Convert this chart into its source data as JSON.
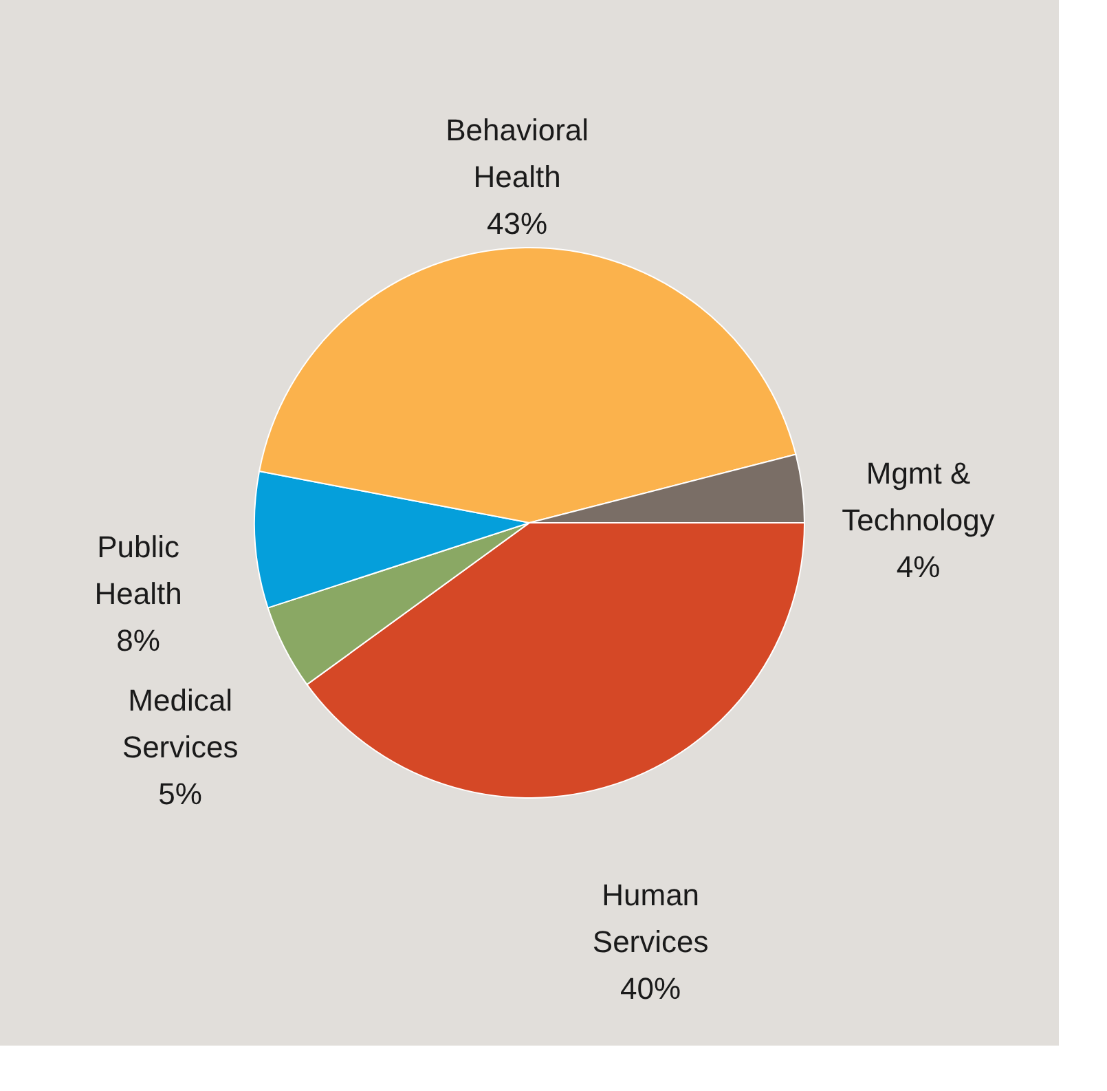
{
  "chart_data": {
    "type": "pie",
    "categories": [
      "Human Services",
      "Medical Services",
      "Public Health",
      "Behavioral Health",
      "Mgmt & Technology"
    ],
    "values": [
      40,
      5,
      8,
      43,
      4
    ],
    "value_labels": [
      "40%",
      "5%",
      "8%",
      "43%",
      "4%"
    ],
    "colors": [
      "#d54826",
      "#8aa864",
      "#059fdb",
      "#fbb24c",
      "#7a6e66"
    ],
    "legend": false
  }
}
